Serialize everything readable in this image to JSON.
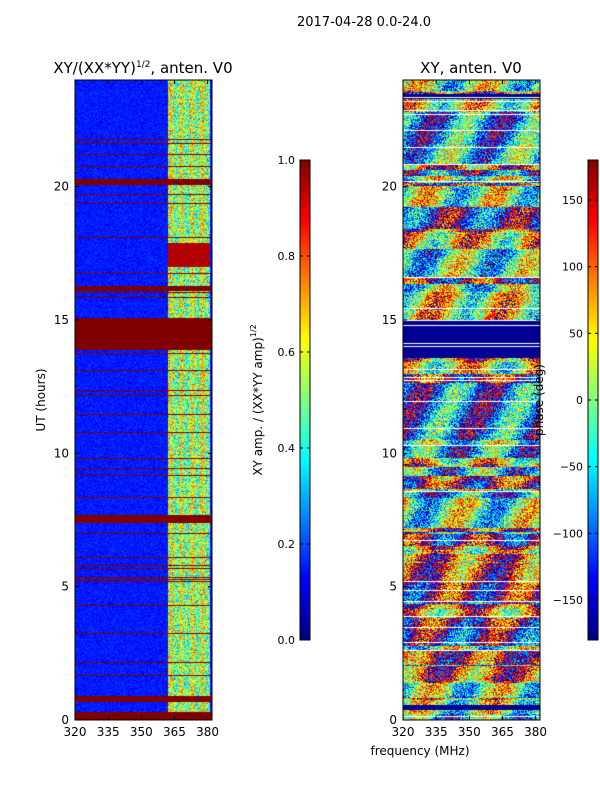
{
  "figure": {
    "suptitle": "2017-04-28 0.0-24.0",
    "shared_xlabel": "frequency (MHz)"
  },
  "chart_data": [
    {
      "type": "heatmap",
      "title_main": "XY/(XX*YY)",
      "title_sup": "1/2",
      "title_tail": ", anten. V0",
      "xlabel": "",
      "ylabel": "UT (hours)",
      "xlim": [
        320,
        382
      ],
      "ylim": [
        0,
        24
      ],
      "xticks": [
        "320",
        "335",
        "350",
        "365",
        "380"
      ],
      "xtick_values": [
        320,
        335,
        350,
        365,
        380
      ],
      "yticks": [
        "0",
        "5",
        "10",
        "15",
        "20"
      ],
      "ytick_values": [
        0,
        5,
        10,
        15,
        20
      ],
      "colorbar": {
        "label_main": "XY amp. / (XX*YY amp)",
        "label_sup": "1/2",
        "range": [
          0.0,
          1.0
        ],
        "ticks": [
          "0.0",
          "0.2",
          "0.4",
          "0.6",
          "0.8",
          "1.0"
        ],
        "tick_values": [
          0.0,
          0.2,
          0.4,
          0.6,
          0.8,
          1.0
        ],
        "colormap": "jet"
      },
      "saturated_bands_hours": [
        [
          0.0,
          0.3
        ],
        [
          0.7,
          0.9
        ],
        [
          7.4,
          7.7
        ],
        [
          13.9,
          15.1
        ],
        [
          16.1,
          16.3
        ],
        [
          20.1,
          20.3
        ]
      ],
      "active_band_mhz": [
        362,
        381
      ],
      "background_value": 0.15
    },
    {
      "type": "heatmap",
      "title_main": "XY, anten. V0",
      "xlabel": "frequency (MHz)",
      "ylabel": "",
      "xlim": [
        320,
        382
      ],
      "ylim": [
        0,
        24
      ],
      "xticks": [
        "320",
        "335",
        "350",
        "365",
        "380"
      ],
      "xtick_values": [
        320,
        335,
        350,
        365,
        380
      ],
      "yticks": [
        "0",
        "5",
        "10",
        "15",
        "20"
      ],
      "ytick_values": [
        0,
        5,
        10,
        15,
        20
      ],
      "colorbar": {
        "label_main": "phase (deg)",
        "range": [
          -180,
          180
        ],
        "ticks": [
          "150",
          "100",
          "50",
          "0",
          "−50",
          "−100",
          "−150"
        ],
        "tick_values": [
          150,
          100,
          50,
          0,
          -50,
          -100,
          -150
        ],
        "colormap": "jet"
      },
      "saturated_bands_hours": [
        [
          13.6,
          15.0
        ],
        [
          0.4,
          0.6
        ],
        [
          23.3,
          23.5
        ]
      ]
    }
  ]
}
